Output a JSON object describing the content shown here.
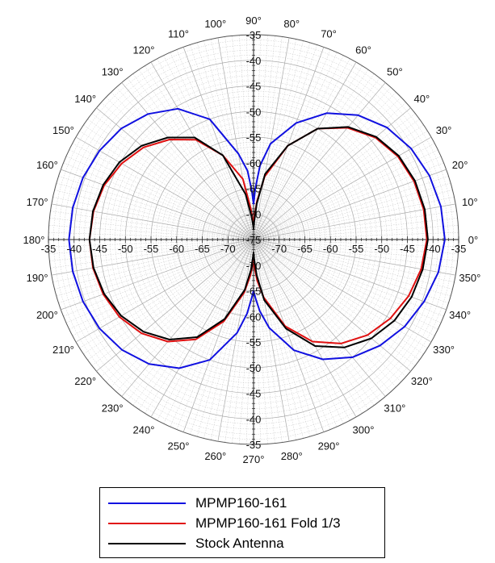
{
  "chart_data": {
    "type": "polar",
    "title": "",
    "radial_axis": {
      "min": -75,
      "max": -35,
      "step": 5,
      "tick_labels": [
        "-35",
        "-40",
        "-45",
        "-50",
        "-55",
        "-60",
        "-65",
        "-70",
        "-75"
      ]
    },
    "angular_axis": {
      "step_deg": 10,
      "tick_labels": [
        "0°",
        "10°",
        "20°",
        "30°",
        "40°",
        "50°",
        "60°",
        "70°",
        "80°",
        "90°",
        "100°",
        "110°",
        "120°",
        "130°",
        "140°",
        "150°",
        "160°",
        "170°",
        "180°",
        "190°",
        "200°",
        "210°",
        "220°",
        "230°",
        "240°",
        "250°",
        "260°",
        "270°",
        "280°",
        "290°",
        "300°",
        "310°",
        "320°",
        "330°",
        "340°",
        "350°"
      ]
    },
    "grid": true,
    "legend_position": "bottom",
    "series": [
      {
        "name": "MPMP160-161",
        "color": "#1010e0",
        "angles": [
          0,
          10,
          20,
          30,
          40,
          50,
          60,
          70,
          80,
          85,
          88,
          90,
          92,
          95,
          100,
          110,
          120,
          130,
          140,
          150,
          160,
          170,
          180,
          190,
          200,
          210,
          220,
          230,
          240,
          250,
          260,
          265,
          268,
          270,
          272,
          275,
          280,
          290,
          300,
          310,
          320,
          330,
          340,
          350,
          360
        ],
        "values": [
          -37.7,
          -37.9,
          -38.5,
          -39.5,
          -41.0,
          -43.3,
          -46.5,
          -50.8,
          -56.0,
          -60.5,
          -65.0,
          -68.0,
          -65.5,
          -61.5,
          -58.0,
          -50.0,
          -45.5,
          -43.0,
          -41.3,
          -40.3,
          -39.6,
          -39.2,
          -39.0,
          -39.2,
          -39.6,
          -40.3,
          -41.5,
          -43.3,
          -46.0,
          -50.0,
          -56.5,
          -60.5,
          -63.5,
          -65.0,
          -63.5,
          -61.0,
          -57.5,
          -52.0,
          -48.0,
          -45.0,
          -42.8,
          -41.0,
          -39.6,
          -38.4,
          -37.7
        ]
      },
      {
        "name": "MPMP160-161 Fold 1/3",
        "color": "#e01010",
        "angles": [
          0,
          10,
          20,
          30,
          40,
          50,
          60,
          70,
          80,
          85,
          88,
          90,
          92,
          95,
          100,
          110,
          120,
          130,
          140,
          150,
          160,
          170,
          180,
          190,
          200,
          210,
          220,
          230,
          240,
          250,
          260,
          265,
          268,
          270,
          272,
          275,
          280,
          290,
          300,
          310,
          320,
          330,
          340,
          350,
          360
        ],
        "values": [
          -41.2,
          -41.3,
          -41.7,
          -42.5,
          -44.0,
          -46.5,
          -50.0,
          -55.5,
          -62.5,
          -67.5,
          -70.5,
          -72.0,
          -71.5,
          -69.0,
          -63.0,
          -57.5,
          -52.5,
          -49.5,
          -47.0,
          -45.3,
          -44.0,
          -43.3,
          -43.0,
          -43.2,
          -43.8,
          -44.8,
          -46.5,
          -49.0,
          -52.5,
          -58.0,
          -64.5,
          -68.0,
          -70.0,
          -71.0,
          -69.5,
          -67.0,
          -63.5,
          -57.0,
          -52.0,
          -48.5,
          -46.0,
          -44.2,
          -42.8,
          -41.8,
          -41.2
        ]
      },
      {
        "name": "Stock Antenna",
        "color": "#000000",
        "angles": [
          0,
          10,
          20,
          30,
          40,
          50,
          60,
          70,
          80,
          85,
          88,
          90,
          92,
          95,
          100,
          110,
          120,
          130,
          140,
          150,
          160,
          170,
          180,
          190,
          200,
          210,
          220,
          230,
          240,
          250,
          260,
          265,
          268,
          270,
          272,
          275,
          280,
          290,
          300,
          310,
          320,
          330,
          340,
          350,
          360
        ],
        "values": [
          -41.0,
          -41.1,
          -41.5,
          -42.3,
          -43.8,
          -46.3,
          -50.0,
          -55.5,
          -62.0,
          -68.0,
          -71.5,
          -73.0,
          -72.0,
          -70.5,
          -66.0,
          -57.5,
          -52.0,
          -49.0,
          -46.5,
          -44.8,
          -43.8,
          -43.2,
          -43.0,
          -43.3,
          -44.0,
          -45.2,
          -47.0,
          -49.5,
          -53.0,
          -58.5,
          -65.0,
          -69.0,
          -71.5,
          -72.5,
          -71.0,
          -68.0,
          -63.0,
          -56.5,
          -51.0,
          -47.5,
          -45.0,
          -43.3,
          -42.2,
          -41.5,
          -41.0
        ]
      }
    ]
  },
  "legend": {
    "items": [
      {
        "label": "MPMP160-161",
        "color": "#1010e0"
      },
      {
        "label": "MPMP160-161 Fold 1/3",
        "color": "#e01010"
      },
      {
        "label": "Stock Antenna",
        "color": "#000000"
      }
    ]
  }
}
